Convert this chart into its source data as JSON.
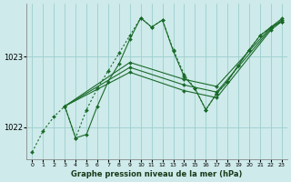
{
  "title": "Graphe pression niveau de la mer (hPa)",
  "bg_color": "#ceeaea",
  "grid_color": "#9ecece",
  "line_color": "#1a6b2a",
  "xlim": [
    -0.5,
    23.5
  ],
  "ylim": [
    1021.55,
    1023.75
  ],
  "yticks": [
    1022,
    1023
  ],
  "xticks": [
    0,
    1,
    2,
    3,
    4,
    5,
    6,
    7,
    8,
    9,
    10,
    11,
    12,
    13,
    14,
    15,
    16,
    17,
    18,
    19,
    20,
    21,
    22,
    23
  ],
  "series": [
    {
      "x": [
        0,
        1,
        2,
        3,
        4,
        5,
        6,
        7,
        8,
        9,
        10,
        11,
        12,
        13,
        14,
        15,
        16,
        17,
        18,
        19,
        20,
        21,
        22,
        23
      ],
      "y": [
        1021.65,
        1021.95,
        1022.15,
        1022.3,
        1021.85,
        1022.25,
        1022.55,
        1022.8,
        1023.05,
        1023.3,
        1023.55,
        1023.42,
        1023.52,
        1023.1,
        1022.75,
        1022.55,
        1022.25,
        1022.48,
        1022.65,
        1022.88,
        1023.1,
        1023.3,
        1023.42,
        1023.5
      ],
      "style": "dotted",
      "marker": "D",
      "markersize": 2.0,
      "lw": 0.8
    },
    {
      "x": [
        3,
        4,
        5,
        6,
        7,
        8,
        9,
        10,
        11,
        12,
        13,
        14,
        15,
        16,
        17,
        18,
        19,
        20,
        21,
        22,
        23
      ],
      "y": [
        1022.3,
        1021.85,
        1021.9,
        1022.3,
        1022.65,
        1022.9,
        1023.25,
        1023.55,
        1023.42,
        1023.52,
        1023.08,
        1022.72,
        1022.55,
        1022.25,
        1022.48,
        1022.65,
        1022.88,
        1023.1,
        1023.3,
        1023.42,
        1023.5
      ],
      "style": "solid",
      "marker": "D",
      "markersize": 2.0,
      "lw": 0.8
    },
    {
      "x": [
        3,
        9,
        14,
        17,
        22,
        23
      ],
      "y": [
        1022.3,
        1022.78,
        1022.52,
        1022.42,
        1023.38,
        1023.5
      ],
      "style": "solid",
      "marker": "D",
      "markersize": 2.0,
      "lw": 0.8
    },
    {
      "x": [
        3,
        9,
        14,
        17,
        22,
        23
      ],
      "y": [
        1022.3,
        1022.85,
        1022.6,
        1022.5,
        1023.4,
        1023.52
      ],
      "style": "solid",
      "marker": "D",
      "markersize": 2.0,
      "lw": 0.8
    },
    {
      "x": [
        3,
        9,
        14,
        17,
        22,
        23
      ],
      "y": [
        1022.3,
        1022.92,
        1022.68,
        1022.58,
        1023.42,
        1023.54
      ],
      "style": "solid",
      "marker": "D",
      "markersize": 2.0,
      "lw": 0.8
    }
  ]
}
